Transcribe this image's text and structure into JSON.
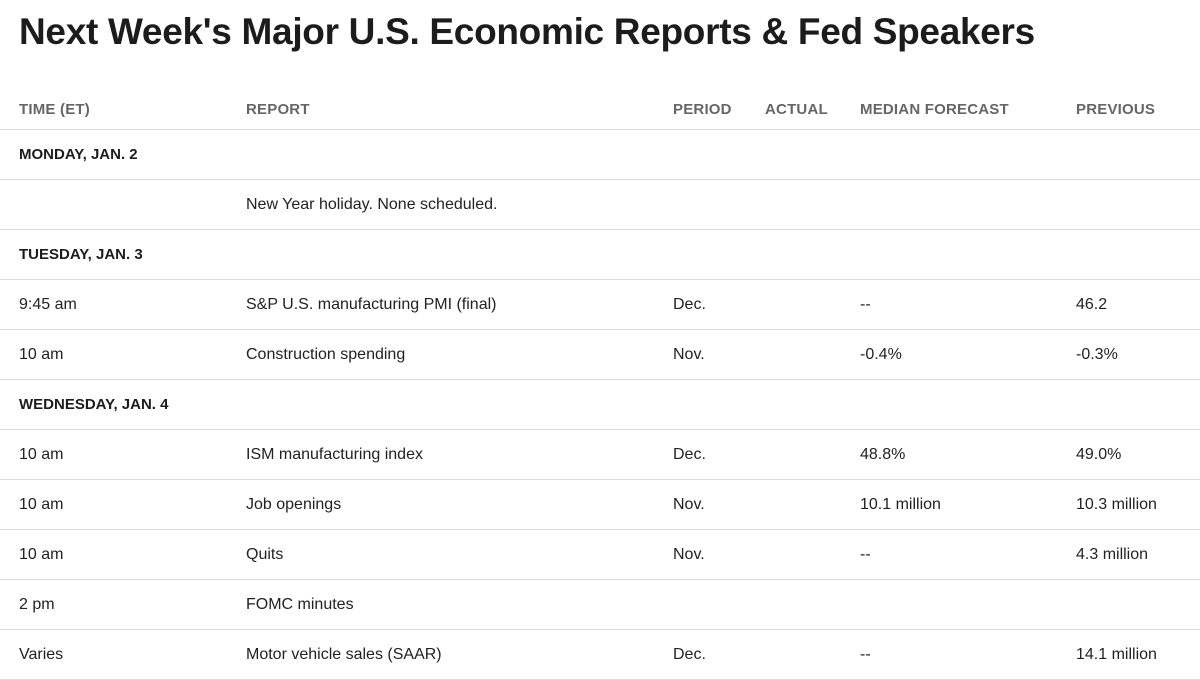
{
  "title": "Next Week's Major U.S. Economic Reports & Fed Speakers",
  "columns": {
    "time": "TIME (ET)",
    "report": "REPORT",
    "period": "PERIOD",
    "actual": "ACTUAL",
    "median": "MEDIAN FORECAST",
    "previous": "PREVIOUS"
  },
  "days": [
    {
      "label": "MONDAY, JAN. 2",
      "rows": [
        {
          "time": "",
          "report": "New Year holiday. None scheduled.",
          "period": "",
          "actual": "",
          "median": "",
          "previous": ""
        }
      ]
    },
    {
      "label": "TUESDAY, JAN. 3",
      "rows": [
        {
          "time": "9:45 am",
          "report": "S&P U.S. manufacturing PMI (final)",
          "period": "Dec.",
          "actual": "",
          "median": "--",
          "previous": "46.2"
        },
        {
          "time": "10 am",
          "report": "Construction spending",
          "period": "Nov.",
          "actual": "",
          "median": "-0.4%",
          "previous": "-0.3%"
        }
      ]
    },
    {
      "label": "WEDNESDAY, JAN. 4",
      "rows": [
        {
          "time": "10 am",
          "report": "ISM manufacturing index",
          "period": "Dec.",
          "actual": "",
          "median": "48.8%",
          "previous": "49.0%"
        },
        {
          "time": "10 am",
          "report": "Job openings",
          "period": "Nov.",
          "actual": "",
          "median": "10.1 million",
          "previous": "10.3 million"
        },
        {
          "time": "10 am",
          "report": "Quits",
          "period": "Nov.",
          "actual": "",
          "median": "--",
          "previous": "4.3 million"
        },
        {
          "time": "2 pm",
          "report": "FOMC minutes",
          "period": "",
          "actual": "",
          "median": "",
          "previous": ""
        },
        {
          "time": "Varies",
          "report": "Motor vehicle sales (SAAR)",
          "period": "Dec.",
          "actual": "",
          "median": "--",
          "previous": "14.1 million"
        }
      ]
    }
  ]
}
